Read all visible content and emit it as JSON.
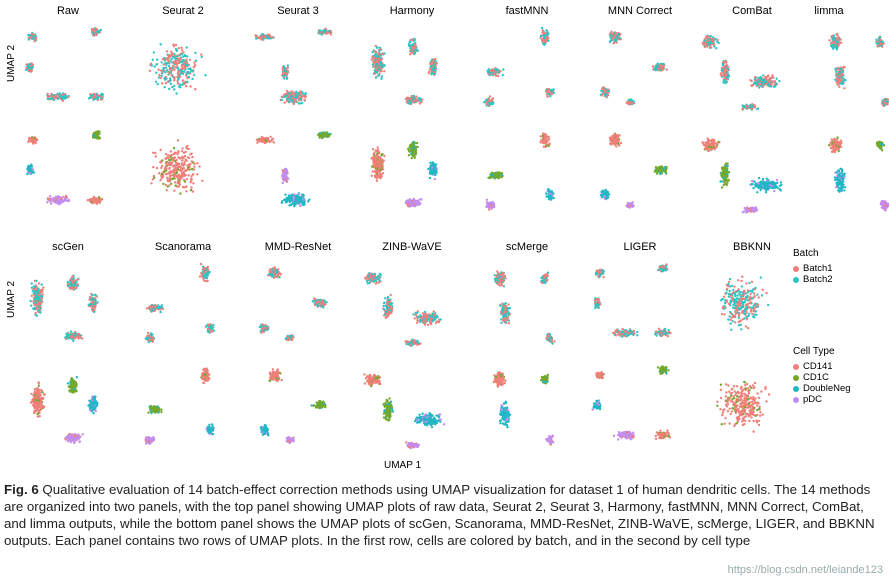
{
  "figure": {
    "top_panel_methods": [
      "Raw",
      "Seurat 2",
      "Seurat 3",
      "Harmony",
      "fastMNN",
      "MNN Correct",
      "ComBat",
      "limma"
    ],
    "bottom_panel_methods": [
      "scGen",
      "Scanorama",
      "MMD-ResNet",
      "ZINB-WaVE",
      "scMerge",
      "LIGER",
      "BBKNN"
    ],
    "y_axis_label": "UMAP 2",
    "x_axis_label": "UMAP 1",
    "batch_legend": {
      "title": "Batch",
      "items": [
        {
          "label": "Batch1",
          "color": "#f07f7a"
        },
        {
          "label": "Batch2",
          "color": "#2ec4c4"
        }
      ]
    },
    "celltype_legend": {
      "title": "Cell Type",
      "items": [
        {
          "label": "CD141",
          "color": "#f07f7a"
        },
        {
          "label": "CD1C",
          "color": "#74a82a"
        },
        {
          "label": "DoubleNeg",
          "color": "#1fb8c4"
        },
        {
          "label": "pDC",
          "color": "#c38df0"
        }
      ]
    }
  },
  "caption": {
    "label": "Fig. 6",
    "text": " Qualitative evaluation of 14 batch-effect correction methods using UMAP visualization for dataset 1 of human dendritic cells. The 14 methods are organized into two panels, with the top panel showing UMAP plots of raw data, Seurat 2, Seurat 3, Harmony, fastMNN, MNN Correct, ComBat, and limma outputs, while the bottom panel shows the UMAP plots of scGen, Scanorama, MMD-ResNet, ZINB-WaVE, scMerge, LIGER, and BBKNN outputs. Each panel contains two rows of UMAP plots. In the first row, cells are colored by batch, and in the second by cell type"
  },
  "watermark": "https://blog.csdn.net/leiande123"
}
